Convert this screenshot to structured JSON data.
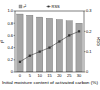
{
  "chart_data": {
    "type": "bar",
    "x_label": "Initial moisture content of activated carbon (%)",
    "y_label": "r²",
    "y2_label": "RSS",
    "categories": [
      "0",
      "5",
      "10",
      "15",
      "20",
      "25",
      "30"
    ],
    "series": [
      {
        "name": "r²",
        "type": "bar",
        "color": "#a6a6a6",
        "values": [
          0.95,
          0.93,
          0.9,
          0.88,
          0.86,
          0.84,
          0.8
        ]
      },
      {
        "name": "RSS",
        "type": "line",
        "axis": "y2",
        "color": "#333333",
        "marker": "square",
        "values": [
          0.05,
          0.08,
          0.1,
          0.12,
          0.15,
          0.18,
          0.2
        ]
      }
    ],
    "ylim": [
      0,
      1
    ],
    "yticks": [
      0,
      0.2,
      0.4,
      0.6,
      0.8,
      {
        "value": 1,
        "label": "1.0"
      }
    ],
    "y2lim": [
      0,
      0.3
    ],
    "y2ticks": [
      0,
      0.1,
      0.2,
      0.3
    ],
    "legend": "top"
  }
}
